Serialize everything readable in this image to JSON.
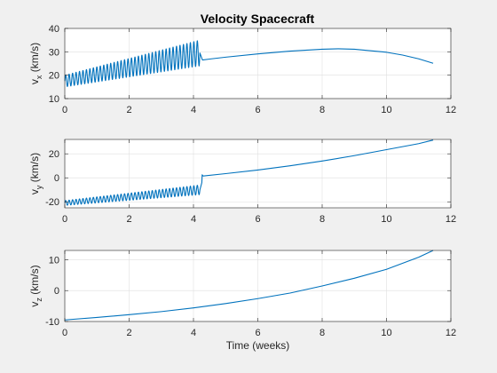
{
  "chart_data": [
    {
      "type": "line",
      "title": "Velocity Spacecraft",
      "ylabel_main": "v",
      "ylabel_sub": "x",
      "ylabel_unit": " (km/s)",
      "xlabel": "",
      "xlim": [
        0,
        12
      ],
      "ylim": [
        10,
        40
      ],
      "xticks": [
        0,
        2,
        4,
        6,
        8,
        10,
        12
      ],
      "yticks": [
        10,
        20,
        30,
        40
      ],
      "grid": true,
      "color": "#0072bd",
      "oscillation": {
        "x_end": 4.2,
        "cycles": 39,
        "center_start": 17.5,
        "center_end": 29.5,
        "amp_start": 2.5,
        "amp_end": 5.5
      },
      "x": [
        4.28,
        4.5,
        5,
        6,
        7,
        8,
        8.5,
        9,
        10,
        10.5,
        11,
        11.45
      ],
      "y": [
        26.5,
        26.9,
        27.7,
        29.1,
        30.3,
        31.1,
        31.3,
        31.1,
        29.8,
        28.6,
        27,
        25.1
      ]
    },
    {
      "type": "line",
      "title": "",
      "ylabel_main": "v",
      "ylabel_sub": "y",
      "ylabel_unit": " (km/s)",
      "xlabel": "",
      "xlim": [
        0,
        12
      ],
      "ylim": [
        -25,
        32
      ],
      "xticks": [
        0,
        2,
        4,
        6,
        8,
        10,
        12
      ],
      "yticks": [
        -20,
        0,
        20
      ],
      "grid": true,
      "color": "#0072bd",
      "oscillation": {
        "x_end": 4.2,
        "cycles": 39,
        "center_start": -21,
        "center_end": -10,
        "amp_start": 2,
        "amp_end": 4
      },
      "x": [
        4.26,
        4.27,
        4.3,
        5,
        6,
        7,
        8,
        9,
        10,
        11,
        11.45
      ],
      "y": [
        -4,
        2.5,
        1.5,
        3.5,
        6.5,
        10,
        14,
        18.5,
        23.5,
        28.5,
        31.5
      ]
    },
    {
      "type": "line",
      "title": "",
      "ylabel_main": "v",
      "ylabel_sub": "z",
      "ylabel_unit": " (km/s)",
      "xlabel": "Time (weeks)",
      "xlim": [
        0,
        12
      ],
      "ylim": [
        -10,
        13
      ],
      "xticks": [
        0,
        2,
        4,
        6,
        8,
        10,
        12
      ],
      "yticks": [
        -10,
        0,
        10
      ],
      "grid": true,
      "color": "#0072bd",
      "x": [
        0,
        1,
        2,
        3,
        4,
        5,
        6,
        7,
        8,
        9,
        10,
        11,
        11.45
      ],
      "y": [
        -9.5,
        -8.7,
        -7.8,
        -6.8,
        -5.6,
        -4.2,
        -2.6,
        -0.8,
        1.5,
        4,
        6.9,
        10.8,
        13
      ]
    }
  ]
}
